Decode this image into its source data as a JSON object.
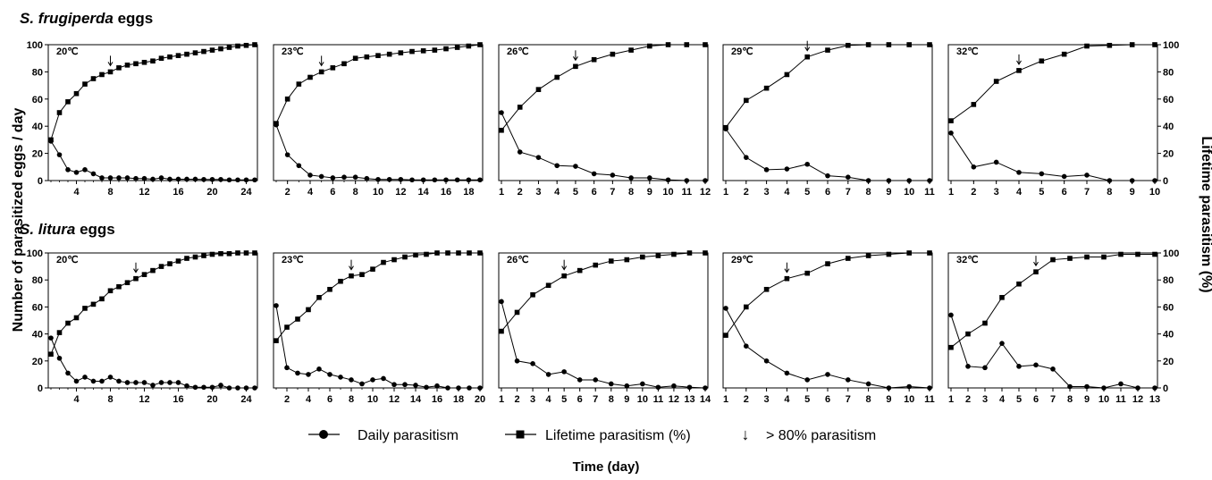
{
  "figure": {
    "y_label_left": "Number of parasitized eggs  / day",
    "y_label_right": "Lifetime parasitism (%)",
    "x_label": "Time (day)",
    "legend": {
      "daily": "Daily parasitism",
      "lifetime": "Lifetime parasitism (%)",
      "arrow_symbol": "↓",
      "arrow_text": "> 80% parasitism"
    }
  },
  "rows": [
    {
      "species": "S. frugiperda",
      "suffix": " eggs"
    },
    {
      "species": "S. litura",
      "suffix": " eggs"
    }
  ],
  "chart_data": [
    {
      "type": "line",
      "row": 0,
      "temp": "20℃",
      "ylim": [
        0,
        100
      ],
      "y2lim": [
        0,
        100
      ],
      "x_ticks": [
        4,
        8,
        12,
        16,
        20,
        24
      ],
      "y_ticks": [
        0,
        20,
        40,
        60,
        80,
        100
      ],
      "y2_ticks": [],
      "x": [
        1,
        2,
        3,
        4,
        5,
        6,
        7,
        8,
        9,
        10,
        11,
        12,
        13,
        14,
        15,
        16,
        17,
        18,
        19,
        20,
        21,
        22,
        23,
        24,
        25
      ],
      "arrow_x": 8,
      "series": [
        {
          "name": "Daily parasitism",
          "values": [
            29,
            19,
            8,
            6,
            8,
            5,
            2,
            2,
            2,
            2,
            1.5,
            1.5,
            1,
            2,
            1,
            1,
            1,
            1,
            0.8,
            0.8,
            0.8,
            0.5,
            0.5,
            0.5,
            0.5
          ]
        },
        {
          "name": "Lifetime parasitism (%)",
          "values": [
            30,
            50,
            58,
            64,
            71,
            75,
            78,
            80,
            83,
            85,
            86,
            87,
            88,
            90,
            91,
            92,
            93,
            94,
            95,
            96,
            97,
            98,
            99,
            99.5,
            100
          ]
        }
      ]
    },
    {
      "type": "line",
      "row": 0,
      "temp": "23℃",
      "ylim": [
        0,
        100
      ],
      "y2lim": [
        0,
        100
      ],
      "x_ticks": [
        2,
        4,
        6,
        8,
        10,
        12,
        14,
        16,
        18
      ],
      "y_ticks": [],
      "y2_ticks": [],
      "x": [
        1,
        2,
        3,
        4,
        5,
        6,
        7,
        8,
        9,
        10,
        11,
        12,
        13,
        14,
        15,
        16,
        17,
        18,
        19
      ],
      "arrow_x": 5,
      "series": [
        {
          "name": "Daily parasitism",
          "values": [
            41,
            19,
            11,
            4,
            3,
            2,
            2.5,
            2.5,
            1.5,
            0.8,
            0.8,
            0.8,
            0.5,
            0.5,
            0.5,
            0.5,
            0.5,
            0.5,
            0.5
          ]
        },
        {
          "name": "Lifetime parasitism (%)",
          "values": [
            42,
            60,
            71,
            76,
            80,
            83,
            86,
            90,
            91,
            92,
            93,
            94,
            95,
            95.5,
            96,
            97,
            98,
            99,
            100
          ]
        }
      ]
    },
    {
      "type": "line",
      "row": 0,
      "temp": "26℃",
      "ylim": [
        0,
        100
      ],
      "y2lim": [
        0,
        100
      ],
      "x_ticks": [
        1,
        2,
        3,
        4,
        5,
        6,
        7,
        8,
        9,
        10,
        11,
        12
      ],
      "y_ticks": [],
      "y2_ticks": [],
      "x": [
        1,
        2,
        3,
        4,
        5,
        6,
        7,
        8,
        9,
        10,
        11,
        12
      ],
      "arrow_x": 5,
      "series": [
        {
          "name": "Daily parasitism",
          "values": [
            50,
            21,
            17,
            11,
            10.5,
            5,
            4,
            2,
            2,
            0.5,
            0,
            0
          ]
        },
        {
          "name": "Lifetime parasitism (%)",
          "values": [
            37,
            54,
            67,
            76,
            84,
            89,
            93,
            96,
            99,
            100,
            100,
            100
          ]
        }
      ]
    },
    {
      "type": "line",
      "row": 0,
      "temp": "29℃",
      "ylim": [
        0,
        100
      ],
      "y2lim": [
        0,
        100
      ],
      "x_ticks": [
        1,
        2,
        3,
        4,
        5,
        6,
        7,
        8,
        9,
        10,
        11
      ],
      "y_ticks": [],
      "y2_ticks": [],
      "x": [
        1,
        2,
        3,
        4,
        5,
        6,
        7,
        8,
        9,
        10,
        11
      ],
      "arrow_x": 5,
      "series": [
        {
          "name": "Daily parasitism",
          "values": [
            38,
            17,
            8,
            8.5,
            12,
            3.5,
            2.5,
            0,
            0,
            0,
            0
          ]
        },
        {
          "name": "Lifetime parasitism (%)",
          "values": [
            39,
            59,
            68,
            78,
            91,
            96,
            99.5,
            100,
            100,
            100,
            100
          ]
        }
      ]
    },
    {
      "type": "line",
      "row": 0,
      "temp": "32℃",
      "ylim": [
        0,
        100
      ],
      "y2lim": [
        0,
        100
      ],
      "x_ticks": [
        1,
        2,
        3,
        4,
        5,
        6,
        7,
        8,
        9,
        10
      ],
      "y_ticks": [],
      "y2_ticks": [
        0,
        20,
        40,
        60,
        80,
        100
      ],
      "x": [
        1,
        2,
        3,
        4,
        5,
        6,
        7,
        8,
        9,
        10
      ],
      "arrow_x": 4,
      "series": [
        {
          "name": "Daily parasitism",
          "values": [
            35,
            10,
            13.5,
            6,
            5,
            3,
            4,
            0,
            0,
            0
          ]
        },
        {
          "name": "Lifetime parasitism (%)",
          "values": [
            44,
            56,
            73,
            81,
            88,
            93,
            99,
            99.5,
            100,
            100
          ]
        }
      ]
    },
    {
      "type": "line",
      "row": 1,
      "temp": "20℃",
      "ylim": [
        0,
        100
      ],
      "y2lim": [
        0,
        100
      ],
      "x_ticks": [
        4,
        8,
        12,
        16,
        20,
        24
      ],
      "y_ticks": [
        0,
        20,
        40,
        60,
        80,
        100
      ],
      "y2_ticks": [],
      "x": [
        1,
        2,
        3,
        4,
        5,
        6,
        7,
        8,
        9,
        10,
        11,
        12,
        13,
        14,
        15,
        16,
        17,
        18,
        19,
        20,
        21,
        22,
        23,
        24,
        25
      ],
      "arrow_x": 11,
      "series": [
        {
          "name": "Daily parasitism",
          "values": [
            37,
            22,
            11,
            5,
            8,
            5,
            5,
            8,
            5,
            4,
            4,
            4,
            2,
            4,
            4,
            4,
            1.5,
            0.5,
            0.5,
            0.5,
            2,
            0,
            0,
            0,
            0
          ]
        },
        {
          "name": "Lifetime parasitism (%)",
          "values": [
            25,
            41,
            48,
            52,
            59,
            62,
            66,
            72,
            75,
            78,
            81,
            84,
            87,
            90,
            92,
            94,
            96,
            97,
            98,
            99,
            99.5,
            99.5,
            100,
            100,
            100
          ]
        }
      ]
    },
    {
      "type": "line",
      "row": 1,
      "temp": "23℃",
      "ylim": [
        0,
        100
      ],
      "y2lim": [
        0,
        100
      ],
      "x_ticks": [
        2,
        4,
        6,
        8,
        10,
        12,
        14,
        16,
        18,
        20
      ],
      "y_ticks": [],
      "y2_ticks": [],
      "x": [
        1,
        2,
        3,
        4,
        5,
        6,
        7,
        8,
        9,
        10,
        11,
        12,
        13,
        14,
        15,
        16,
        17,
        18,
        19,
        20
      ],
      "arrow_x": 8,
      "series": [
        {
          "name": "Daily parasitism",
          "values": [
            61,
            15,
            11,
            10,
            14,
            10,
            8,
            6,
            3,
            6,
            7,
            2.5,
            2.5,
            2,
            0.5,
            1.5,
            0,
            0,
            0,
            0
          ]
        },
        {
          "name": "Lifetime parasitism (%)",
          "values": [
            35,
            45,
            51,
            58,
            67,
            73,
            79,
            83,
            84,
            88,
            93,
            95,
            97,
            98.5,
            99,
            100,
            100,
            100,
            100,
            100
          ]
        }
      ]
    },
    {
      "type": "line",
      "row": 1,
      "temp": "26℃",
      "ylim": [
        0,
        100
      ],
      "y2lim": [
        0,
        100
      ],
      "x_ticks": [
        1,
        2,
        3,
        4,
        5,
        6,
        7,
        8,
        9,
        10,
        11,
        12,
        13,
        14
      ],
      "y_ticks": [],
      "y2_ticks": [],
      "x": [
        1,
        2,
        3,
        4,
        5,
        6,
        7,
        8,
        9,
        10,
        11,
        12,
        13,
        14
      ],
      "arrow_x": 5,
      "series": [
        {
          "name": "Daily parasitism",
          "values": [
            64,
            20,
            18,
            10,
            12,
            6,
            6,
            3,
            1.5,
            3,
            0.5,
            1.5,
            0.5,
            0
          ]
        },
        {
          "name": "Lifetime parasitism (%)",
          "values": [
            42,
            56,
            69,
            76,
            83,
            87,
            91,
            94,
            95,
            97,
            98,
            99,
            100,
            100
          ]
        }
      ]
    },
    {
      "type": "line",
      "row": 1,
      "temp": "29℃",
      "ylim": [
        0,
        100
      ],
      "y2lim": [
        0,
        100
      ],
      "x_ticks": [
        1,
        2,
        3,
        4,
        5,
        6,
        7,
        8,
        9,
        10,
        11
      ],
      "y_ticks": [],
      "y2_ticks": [],
      "x": [
        1,
        2,
        3,
        4,
        5,
        6,
        7,
        8,
        9,
        10,
        11
      ],
      "arrow_x": 4,
      "series": [
        {
          "name": "Daily parasitism",
          "values": [
            59,
            31,
            20,
            11,
            6,
            10,
            6,
            3,
            0,
            1,
            0
          ]
        },
        {
          "name": "Lifetime parasitism (%)",
          "values": [
            39,
            60,
            73,
            81,
            85,
            92,
            96,
            98,
            99,
            100,
            100
          ]
        }
      ]
    },
    {
      "type": "line",
      "row": 1,
      "temp": "32℃",
      "ylim": [
        0,
        100
      ],
      "y2lim": [
        0,
        100
      ],
      "x_ticks": [
        1,
        2,
        3,
        4,
        5,
        6,
        7,
        8,
        9,
        10,
        11,
        12,
        13
      ],
      "y_ticks": [],
      "y2_ticks": [
        0,
        20,
        40,
        60,
        80,
        100
      ],
      "x": [
        1,
        2,
        3,
        4,
        5,
        6,
        7,
        8,
        9,
        10,
        11,
        12,
        13
      ],
      "arrow_x": 6,
      "series": [
        {
          "name": "Daily parasitism",
          "values": [
            54,
            16,
            15,
            33,
            16,
            17,
            14,
            1,
            1,
            0,
            3,
            0,
            0
          ]
        },
        {
          "name": "Lifetime parasitism (%)",
          "values": [
            30,
            40,
            48,
            67,
            77,
            86,
            95,
            96,
            97,
            97,
            99,
            99,
            99
          ]
        }
      ]
    }
  ]
}
